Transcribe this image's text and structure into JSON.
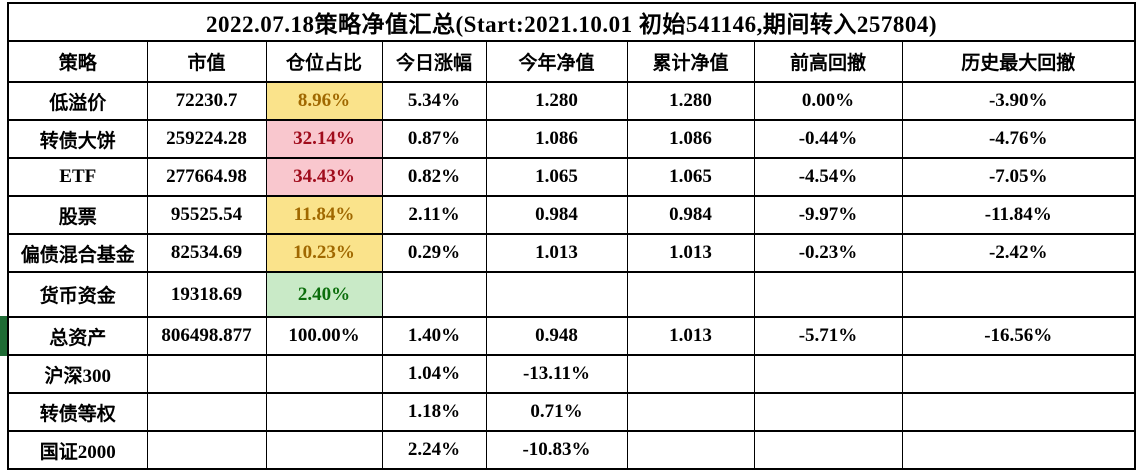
{
  "title": "2022.07.18策略净值汇总(Start:2021.10.01 初始541146,期间转入257804)",
  "colors": {
    "border": "#000000",
    "neutral_bg": "#FAE38B",
    "neutral_text": "#A06800",
    "bad_bg": "#F9C7CE",
    "bad_text": "#A00C1C",
    "good_bg": "#C9EAC7",
    "good_text": "#0C6E0C",
    "row_marker_green": "#1E6B34"
  },
  "chart_data": {
    "type": "table",
    "title": "2022.07.18策略净值汇总(Start:2021.10.01 初始541146,期间转入257804)",
    "columns": [
      "策略",
      "市值",
      "仓位占比",
      "今日涨幅",
      "今年净值",
      "累计净值",
      "前高回撤",
      "历史最大回撤"
    ],
    "rows": [
      {
        "cells": [
          "低溢价",
          "72230.7",
          "8.96%",
          "5.34%",
          "1.280",
          "1.280",
          "0.00%",
          "-3.90%"
        ],
        "position_style": "neutral",
        "left_marker": false
      },
      {
        "cells": [
          "转债大饼",
          "259224.28",
          "32.14%",
          "0.87%",
          "1.086",
          "1.086",
          "-0.44%",
          "-4.76%"
        ],
        "position_style": "bad",
        "left_marker": false
      },
      {
        "cells": [
          "ETF",
          "277664.98",
          "34.43%",
          "0.82%",
          "1.065",
          "1.065",
          "-4.54%",
          "-7.05%"
        ],
        "position_style": "bad",
        "left_marker": false
      },
      {
        "cells": [
          "股票",
          "95525.54",
          "11.84%",
          "2.11%",
          "0.984",
          "0.984",
          "-9.97%",
          "-11.84%"
        ],
        "position_style": "neutral",
        "left_marker": false
      },
      {
        "cells": [
          "偏债混合基金",
          "82534.69",
          "10.23%",
          "0.29%",
          "1.013",
          "1.013",
          "-0.23%",
          "-2.42%"
        ],
        "position_style": "neutral",
        "left_marker": false
      },
      {
        "cells": [
          "货币资金",
          "19318.69",
          "2.40%",
          "",
          "",
          "",
          "",
          ""
        ],
        "position_style": "good",
        "left_marker": false
      },
      {
        "cells": [
          "总资产",
          "806498.877",
          "100.00%",
          "1.40%",
          "0.948",
          "1.013",
          "-5.71%",
          "-16.56%"
        ],
        "position_style": "none",
        "left_marker": true
      },
      {
        "cells": [
          "沪深300",
          "",
          "",
          "1.04%",
          "-13.11%",
          "",
          "",
          ""
        ],
        "position_style": "none",
        "left_marker": false
      },
      {
        "cells": [
          "转债等权",
          "",
          "",
          "1.18%",
          "0.71%",
          "",
          "",
          ""
        ],
        "position_style": "none",
        "left_marker": false
      },
      {
        "cells": [
          "国证2000",
          "",
          "",
          "2.24%",
          "-10.83%",
          "",
          "",
          ""
        ],
        "position_style": "none",
        "left_marker": false
      }
    ]
  }
}
